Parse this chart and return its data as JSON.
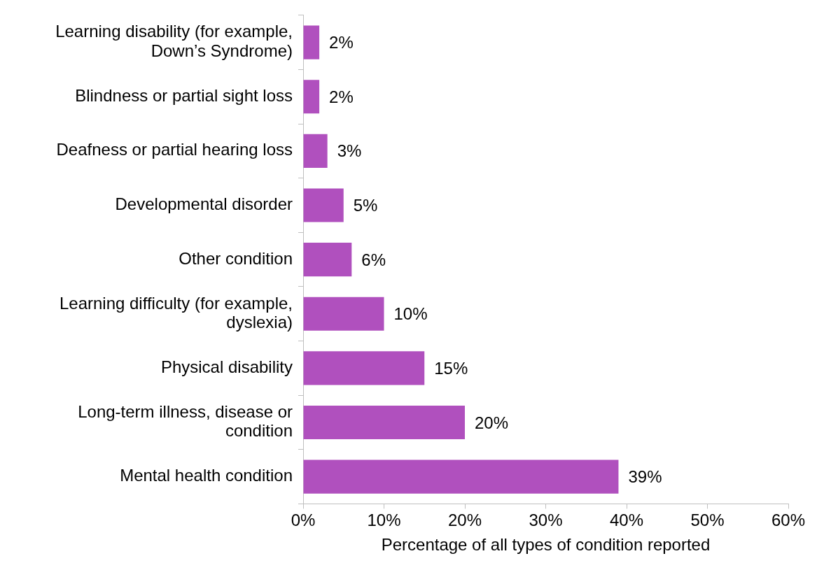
{
  "chart_data": {
    "type": "bar",
    "orientation": "horizontal",
    "xlabel": "Percentage of all types of condition reported",
    "categories": [
      "Learning disability (for example, Down’s Syndrome)",
      "Blindness or partial sight loss",
      "Deafness or partial hearing loss",
      "Developmental disorder",
      "Other condition",
      "Learning difficulty (for example, dyslexia)",
      "Physical disability",
      "Long-term illness, disease or condition",
      "Mental health condition"
    ],
    "values": [
      2,
      2,
      3,
      5,
      6,
      10,
      15,
      20,
      39
    ],
    "value_labels": [
      "2%",
      "2%",
      "3%",
      "5%",
      "6%",
      "10%",
      "15%",
      "20%",
      "39%"
    ],
    "color": "#b050be",
    "xlim": [
      0,
      60
    ],
    "xticks": [
      {
        "value": 0,
        "label": "0%"
      },
      {
        "value": 10,
        "label": "10%"
      },
      {
        "value": 20,
        "label": "20%"
      },
      {
        "value": 30,
        "label": "30%"
      },
      {
        "value": 40,
        "label": "40%"
      },
      {
        "value": 50,
        "label": "50%"
      },
      {
        "value": 60,
        "label": "60%"
      }
    ],
    "grid": false,
    "legend": false
  }
}
